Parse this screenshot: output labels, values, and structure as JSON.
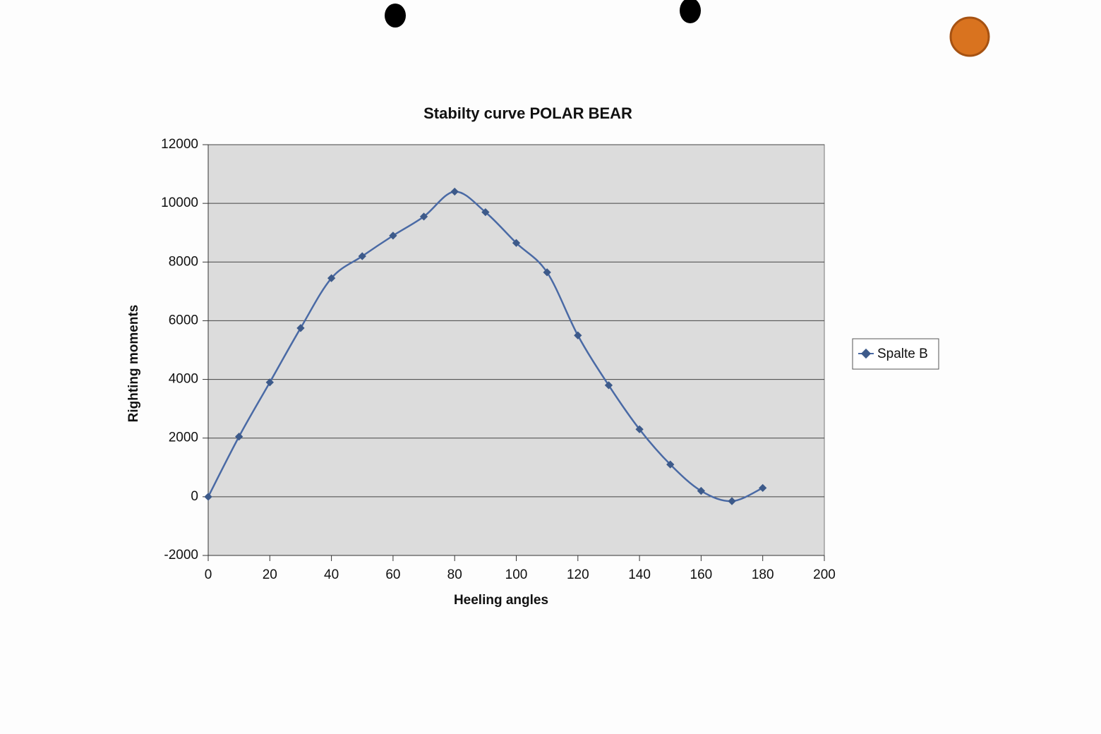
{
  "chart_data": {
    "type": "line",
    "title": "Stabilty curve POLAR BEAR",
    "x_label": "Heeling angles",
    "y_label": "Righting moments",
    "x": [
      0,
      10,
      20,
      30,
      40,
      50,
      60,
      70,
      80,
      90,
      100,
      110,
      120,
      130,
      140,
      150,
      160,
      170,
      180
    ],
    "series": [
      {
        "name": "Spalte B",
        "color": "#4a6aa5",
        "values": [
          0,
          2050,
          3900,
          5750,
          7450,
          8200,
          8900,
          9550,
          10400,
          9700,
          8650,
          7650,
          5500,
          3800,
          2300,
          1100,
          200,
          -150,
          300
        ]
      }
    ],
    "xlim": [
      0,
      200
    ],
    "xticks": [
      0,
      20,
      40,
      60,
      80,
      100,
      120,
      140,
      160,
      180,
      200
    ],
    "ylim": [
      -2000,
      12000
    ],
    "yticks": [
      -2000,
      0,
      2000,
      4000,
      6000,
      8000,
      10000,
      12000
    ],
    "grid": true,
    "smooth": true,
    "legend": "right"
  }
}
